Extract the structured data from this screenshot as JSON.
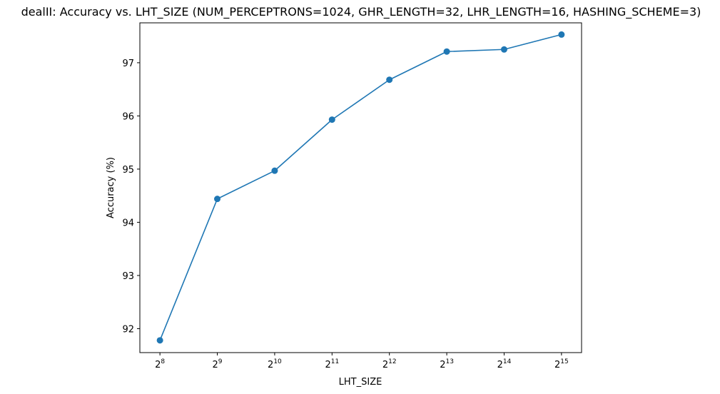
{
  "chart_data": {
    "type": "line",
    "title": "dealII: Accuracy vs. LHT_SIZE (NUM_PERCEPTRONS=1024, GHR_LENGTH=32, LHR_LENGTH=16, HASHING_SCHEME=3)",
    "xlabel": "LHT_SIZE",
    "ylabel": "Accuracy (%)",
    "x_scale": "log2",
    "x_ticks": [
      {
        "value": 256,
        "base": "2",
        "exp": "8"
      },
      {
        "value": 512,
        "base": "2",
        "exp": "9"
      },
      {
        "value": 1024,
        "base": "2",
        "exp": "10"
      },
      {
        "value": 2048,
        "base": "2",
        "exp": "11"
      },
      {
        "value": 4096,
        "base": "2",
        "exp": "12"
      },
      {
        "value": 8192,
        "base": "2",
        "exp": "13"
      },
      {
        "value": 16384,
        "base": "2",
        "exp": "14"
      },
      {
        "value": 32768,
        "base": "2",
        "exp": "15"
      }
    ],
    "y_ticks": [
      "92",
      "93",
      "94",
      "95",
      "96",
      "97"
    ],
    "ylim": [
      91.55,
      97.75
    ],
    "grid": false,
    "marker": "circle",
    "series": [
      {
        "color": "#1f77b4",
        "x": [
          256,
          512,
          1024,
          2048,
          4096,
          8192,
          16384,
          32768
        ],
        "y": [
          91.78,
          94.44,
          94.97,
          95.93,
          96.68,
          97.21,
          97.25,
          97.53
        ]
      }
    ]
  }
}
